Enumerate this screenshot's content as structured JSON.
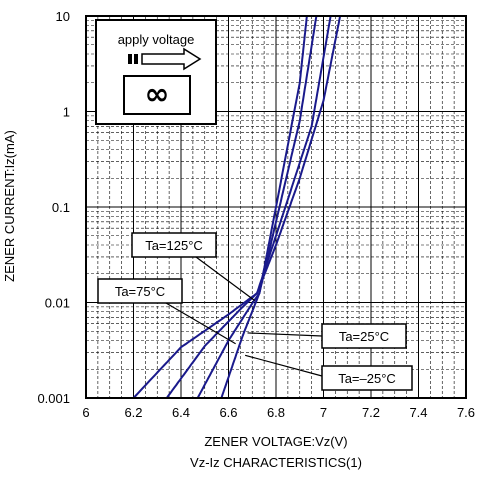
{
  "chart_data": {
    "type": "line",
    "xlabel": "ZENER VOLTAGE:Vz(V)",
    "caption": "Vz-Iz CHARACTERISTICS(1)",
    "ylabel": "ZENER CURRENT:Iz(mA)",
    "xlim": [
      6,
      7.6
    ],
    "ylim": [
      0.001,
      10
    ],
    "yscale": "log",
    "grid": true,
    "x_ticks": [
      "6",
      "6.2",
      "6.4",
      "6.6",
      "6.8",
      "7",
      "7.2",
      "7.4",
      "7.6"
    ],
    "y_ticks": [
      "0.001",
      "0.01",
      "0.1",
      "1",
      "10"
    ],
    "line_color": "#1a1a8c",
    "inset": {
      "label": "apply voltage",
      "symbol": "∞"
    },
    "series": [
      {
        "name": "Ta=125°C",
        "points": [
          [
            6.2,
            0.001
          ],
          [
            6.4,
            0.0034
          ],
          [
            6.6,
            0.0075
          ],
          [
            6.72,
            0.0125
          ],
          [
            6.8,
            0.04
          ],
          [
            6.9,
            0.2
          ],
          [
            7.0,
            1.3
          ],
          [
            7.07,
            10
          ]
        ]
      },
      {
        "name": "Ta=75°C",
        "points": [
          [
            6.34,
            0.001
          ],
          [
            6.5,
            0.0035
          ],
          [
            6.65,
            0.0085
          ],
          [
            6.72,
            0.0125
          ],
          [
            6.8,
            0.05
          ],
          [
            6.95,
            0.7
          ],
          [
            7.03,
            10
          ]
        ]
      },
      {
        "name": "Ta=25°C",
        "points": [
          [
            6.47,
            0.001
          ],
          [
            6.6,
            0.004
          ],
          [
            6.7,
            0.0098
          ],
          [
            6.73,
            0.0125
          ],
          [
            6.8,
            0.07
          ],
          [
            6.9,
            0.8
          ],
          [
            6.97,
            10
          ]
        ]
      },
      {
        "name": "Ta=-25°C",
        "points": [
          [
            6.57,
            0.001
          ],
          [
            6.66,
            0.0045
          ],
          [
            6.73,
            0.0125
          ],
          [
            6.8,
            0.1
          ],
          [
            6.9,
            2.0
          ],
          [
            6.93,
            10
          ]
        ]
      }
    ],
    "annotations": [
      {
        "text": "Ta=125°C",
        "target_x": 6.71,
        "target_y": 0.0105
      },
      {
        "text": "Ta=75°C",
        "target_x": 6.63,
        "target_y": 0.0037
      },
      {
        "text": "Ta=25°C",
        "target_x": 6.68,
        "target_y": 0.0048
      },
      {
        "text": "Ta=–25°C",
        "target_x": 6.67,
        "target_y": 0.0028
      }
    ]
  }
}
